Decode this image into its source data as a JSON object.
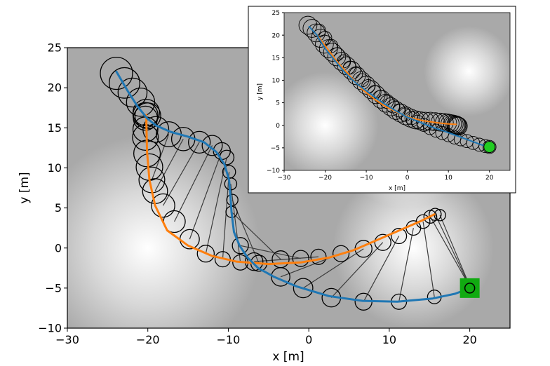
{
  "chart_data": [
    {
      "type": "line",
      "role": "main",
      "xlabel": "x [m]",
      "ylabel": "y [m]",
      "xlim": [
        -30,
        25
      ],
      "ylim": [
        -10,
        25
      ],
      "xticks": [
        "−30",
        "−20",
        "−10",
        "0",
        "10",
        "20"
      ],
      "yticks": [
        "−10",
        "−5",
        "0",
        "5",
        "10",
        "15",
        "20",
        "25"
      ],
      "xtick_values": [
        -30,
        -20,
        -10,
        0,
        10,
        20
      ],
      "ytick_values": [
        -10,
        -5,
        0,
        5,
        10,
        15,
        20,
        25
      ],
      "grid": false,
      "series": [
        {
          "name": "path_blue",
          "color": "#1f77b4",
          "x": [
            -23.9,
            -22.5,
            -21.3,
            -20.1,
            -19.0,
            -17.2,
            -15.0,
            -13.0,
            -11.5,
            -10.5,
            -9.9,
            -9.7,
            -9.6,
            -9.3,
            -8.6,
            -7.6,
            -6.3,
            -4.3,
            -1.5,
            2.5,
            6.7,
            11.0,
            15.4,
            18.2,
            19.5,
            20.0
          ],
          "y": [
            22.0,
            19.6,
            17.7,
            16.2,
            15.3,
            14.5,
            13.9,
            13.2,
            12.0,
            10.5,
            8.5,
            6.0,
            4.5,
            2.0,
            0.3,
            -1.2,
            -2.5,
            -3.6,
            -4.8,
            -6.0,
            -6.6,
            -6.7,
            -6.3,
            -5.7,
            -5.2,
            -5.0
          ]
        },
        {
          "name": "path_orange",
          "color": "#ff7f0e",
          "x": [
            -20.2,
            -20.1,
            -19.8,
            -19.1,
            -17.6,
            -15.0,
            -12.0,
            -9.0,
            -5.0,
            -1.0,
            2.5,
            5.5,
            8.5,
            11.5,
            14.0,
            15.6
          ],
          "y": [
            16.6,
            12.0,
            8.5,
            5.3,
            2.2,
            0.3,
            -1.0,
            -1.7,
            -2.0,
            -1.8,
            -1.2,
            -0.3,
            1.0,
            2.3,
            3.4,
            4.2
          ]
        }
      ],
      "circles": {
        "x": [
          -23.9,
          -22.9,
          -21.9,
          -20.9,
          -20.2,
          -20.0,
          -20.3,
          -20.3,
          -20.3,
          -20.3,
          -20.1,
          -19.8,
          -19.5,
          -19.1,
          -18.1,
          -16.7,
          -14.8,
          -12.8,
          -10.7,
          -8.5,
          -6.2,
          -3.5,
          -1.0,
          1.2,
          4.0,
          6.8,
          9.2,
          11.2,
          13.0,
          14.2,
          15.1,
          15.7,
          16.3,
          -19.0,
          -17.4,
          -15.6,
          -13.6,
          -12.0,
          -10.8,
          -10.2,
          -9.9,
          -9.7,
          -9.5,
          -9.6,
          -8.5,
          -6.8,
          -3.5,
          -0.7,
          2.8,
          6.8,
          11.2,
          15.6,
          20.1
        ],
        "y": [
          21.8,
          20.6,
          19.4,
          18.2,
          16.9,
          16.5,
          16.6,
          16.2,
          14.8,
          13.8,
          11.8,
          10.1,
          8.5,
          7.1,
          5.3,
          3.3,
          1.1,
          -0.7,
          -1.4,
          -1.8,
          -1.9,
          -1.4,
          -1.3,
          -1.1,
          -0.7,
          -0.1,
          0.7,
          1.5,
          2.5,
          3.3,
          3.9,
          4.2,
          4.1,
          14.8,
          14.2,
          13.6,
          13.2,
          12.8,
          12.1,
          11.3,
          9.5,
          8.0,
          6.0,
          4.5,
          0.3,
          -1.7,
          -3.6,
          -5.0,
          -6.2,
          -6.7,
          -6.7,
          -6.1,
          -5.0
        ],
        "r_m": [
          2.0,
          1.9,
          1.8,
          1.75,
          1.65,
          1.6,
          1.55,
          1.5,
          1.55,
          1.6,
          1.65,
          1.65,
          1.6,
          1.55,
          1.45,
          1.35,
          1.2,
          1.05,
          0.95,
          0.95,
          1.0,
          1.05,
          1.0,
          0.95,
          1.0,
          1.05,
          1.0,
          0.95,
          0.9,
          0.85,
          0.8,
          0.75,
          0.7,
          1.6,
          1.55,
          1.45,
          1.35,
          1.25,
          1.05,
          0.9,
          0.8,
          0.75,
          0.7,
          0.7,
          1.0,
          1.1,
          1.15,
          1.2,
          1.15,
          1.05,
          0.95,
          0.85,
          0.75
        ]
      },
      "links": {
        "from": [
          12,
          13,
          14,
          15,
          16,
          17,
          18,
          19,
          20,
          21,
          22,
          23,
          24,
          25,
          26,
          27,
          28,
          29,
          30,
          31,
          32
        ],
        "to": [
          34,
          35,
          36,
          37,
          38,
          39,
          40,
          41,
          42,
          43,
          44,
          45,
          46,
          47,
          48,
          49,
          50,
          51,
          52,
          52,
          52
        ]
      },
      "goal": {
        "x": 20.0,
        "y": -5.0,
        "color": "#11aa11"
      },
      "background_blobs": [
        {
          "x": -20,
          "y": 0,
          "r_m": 14
        },
        {
          "x": 13,
          "y": 0,
          "r_m": 10
        },
        {
          "x": 12,
          "y": 14,
          "r_m": 9
        }
      ]
    },
    {
      "type": "line",
      "role": "inset",
      "xlabel": "x [m]",
      "ylabel": "y [m]",
      "xlim": [
        -30,
        25
      ],
      "ylim": [
        -10,
        25
      ],
      "xticks": [
        "−30",
        "−20",
        "−10",
        "0",
        "10",
        "20"
      ],
      "yticks": [
        "−10",
        "−5",
        "0",
        "5",
        "10",
        "15",
        "20",
        "25"
      ],
      "xtick_values": [
        -30,
        -20,
        -10,
        0,
        10,
        20
      ],
      "ytick_values": [
        -10,
        -5,
        0,
        5,
        10,
        15,
        20,
        25
      ],
      "grid": false,
      "series": [
        {
          "name": "path_blue",
          "color": "#1f77b4",
          "x": [
            -24.0,
            -22.0,
            -20.0,
            -17.5,
            -15.0,
            -12.0,
            -9.0,
            -6.0,
            -3.0,
            0.0,
            3.0,
            6.0,
            9.0,
            12.0,
            15.0,
            18.0,
            20.0
          ],
          "y": [
            22.0,
            20.0,
            17.0,
            14.2,
            11.5,
            9.0,
            7.0,
            5.0,
            3.3,
            1.8,
            0.7,
            -0.4,
            -1.3,
            -2.3,
            -3.3,
            -4.3,
            -4.9
          ]
        },
        {
          "name": "path_orange",
          "color": "#ff7f0e",
          "x": [
            -23.5,
            -21.5,
            -19.5,
            -17.0,
            -14.0,
            -11.0,
            -8.0,
            -5.0,
            -2.0,
            1.0,
            4.0,
            7.0,
            10.0,
            12.0
          ],
          "y": [
            21.5,
            19.5,
            17.0,
            14.0,
            11.0,
            8.0,
            5.8,
            4.0,
            2.7,
            1.6,
            1.0,
            0.6,
            0.3,
            0.2
          ]
        }
      ],
      "circles": {
        "x": [
          -24.2,
          -23.2,
          -22.2,
          -21.2,
          -20.2,
          -19.2,
          -18.2,
          -17.2,
          -16.0,
          -14.8,
          -13.6,
          -12.4,
          -11.2,
          -10.0,
          -8.8,
          -7.6,
          -6.4,
          -5.2,
          -4.0,
          -2.8,
          -1.6,
          -0.4,
          0.8,
          2.0,
          3.2,
          4.4,
          5.6,
          6.8,
          8.0,
          9.0,
          9.8,
          10.4,
          11.0,
          11.4,
          11.8,
          12.0,
          12.2,
          12.4,
          -21.5,
          -20.0,
          -18.5,
          -17.0,
          -15.5,
          -14.0,
          -12.5,
          -11.0,
          -9.5,
          -8.0,
          -6.5,
          -5.0,
          -3.5,
          -2.0,
          -0.5,
          1.0,
          2.5,
          4.0,
          5.5,
          7.0,
          8.5,
          10.0,
          11.5,
          13.0,
          14.5,
          16.0,
          17.5,
          19.0,
          20.0
        ],
        "y": [
          22.2,
          21.5,
          20.5,
          19.3,
          18.0,
          17.0,
          16.2,
          15.2,
          14.2,
          13.2,
          12.2,
          11.0,
          9.9,
          8.9,
          7.9,
          6.8,
          5.8,
          4.9,
          4.1,
          3.3,
          2.7,
          2.1,
          1.6,
          1.2,
          1.0,
          0.9,
          0.9,
          0.8,
          0.7,
          0.6,
          0.5,
          0.4,
          0.3,
          0.2,
          0.1,
          0.0,
          -0.1,
          -0.2,
          21.0,
          19.4,
          17.6,
          15.8,
          14.2,
          12.8,
          11.4,
          10.0,
          8.7,
          7.4,
          6.3,
          5.2,
          4.2,
          3.3,
          2.4,
          1.6,
          0.8,
          0.1,
          -0.6,
          -1.2,
          -1.7,
          -2.2,
          -2.7,
          -3.1,
          -3.5,
          -3.9,
          -4.3,
          -4.6,
          -4.8
        ],
        "r_m": [
          2.2,
          2.2,
          2.2,
          2.2,
          2.2,
          2.2,
          2.2,
          2.2,
          2.2,
          2.2,
          2.2,
          2.2,
          2.2,
          2.2,
          2.2,
          2.2,
          2.2,
          2.2,
          2.2,
          2.2,
          2.2,
          2.2,
          2.2,
          2.2,
          2.2,
          2.2,
          2.2,
          2.2,
          2.2,
          2.2,
          2.2,
          2.2,
          2.2,
          2.2,
          2.2,
          2.2,
          2.2,
          2.2,
          1.6,
          1.6,
          1.6,
          1.6,
          1.6,
          1.6,
          1.6,
          1.6,
          1.6,
          1.6,
          1.6,
          1.6,
          1.6,
          1.6,
          1.6,
          1.6,
          1.6,
          1.6,
          1.6,
          1.6,
          1.6,
          1.6,
          1.6,
          1.6,
          1.6,
          1.6,
          1.6,
          1.6,
          1.6
        ]
      },
      "links": {
        "from": [],
        "to": []
      },
      "goal": {
        "x": 20.0,
        "y": -4.8,
        "color": "#22cc22"
      },
      "background_blobs": [
        {
          "x": -20,
          "y": 0,
          "r_m": 13
        },
        {
          "x": 15,
          "y": 12,
          "r_m": 11
        }
      ]
    }
  ]
}
